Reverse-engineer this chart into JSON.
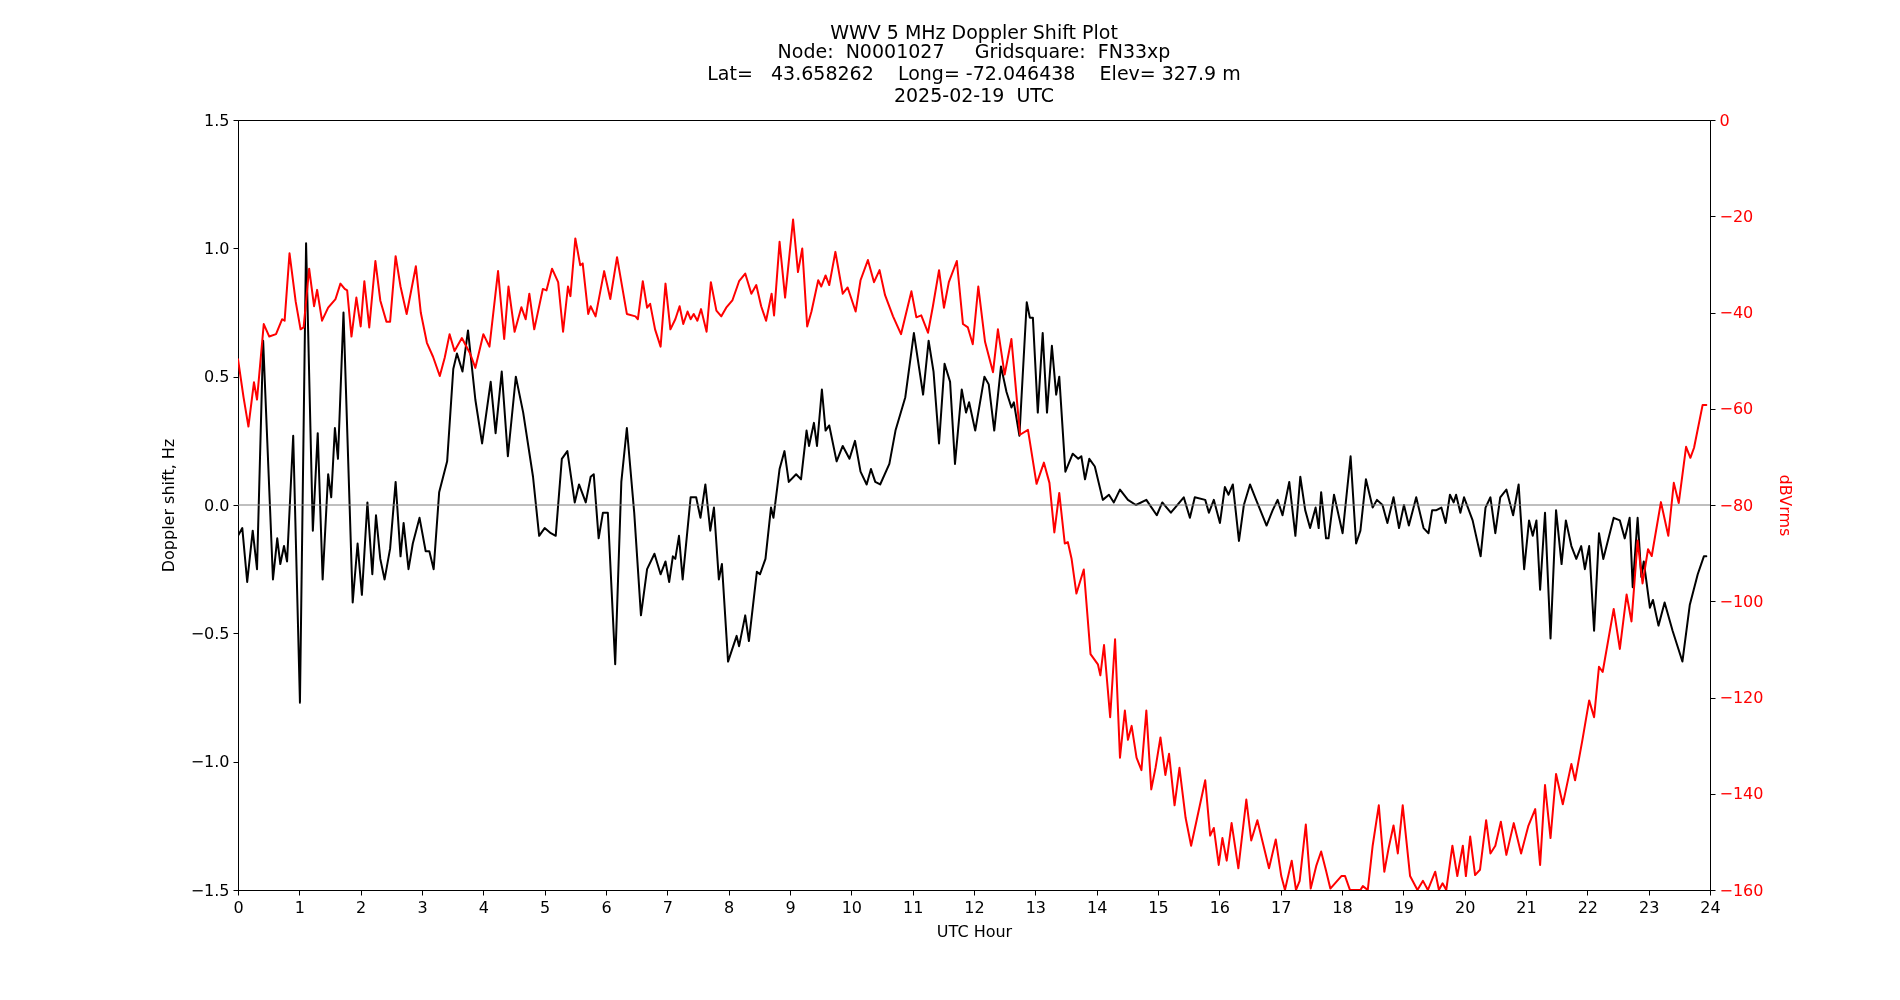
{
  "chart_data": {
    "type": "line",
    "title": "WWV 5 MHz Doppler Shift Plot",
    "subtitle": "Node:  N0001027     Gridsquare:  FN33xp\nLat=   43.658262    Long= -72.046438    Elev= 327.9 m\n2025-02-19  UTC",
    "xlabel": "UTC Hour",
    "ylabel": "Doppler shift, Hz",
    "y2label": "dBVrms",
    "xlim": [
      0,
      24
    ],
    "xticks": [
      0,
      1,
      2,
      3,
      4,
      5,
      6,
      7,
      8,
      9,
      10,
      11,
      12,
      13,
      14,
      15,
      16,
      17,
      18,
      19,
      20,
      21,
      22,
      23,
      24
    ],
    "ylim": [
      -1.5,
      1.5
    ],
    "yticks": [
      {
        "value": -1.5,
        "label": "−1.5"
      },
      {
        "value": -1,
        "label": "−1.0"
      },
      {
        "value": -0.5,
        "label": "−0.5"
      },
      {
        "value": 0,
        "label": "0.0"
      },
      0.5,
      {
        "value": 1,
        "label": "1.0"
      },
      1.5
    ],
    "y2lim": [
      -160,
      0
    ],
    "y2ticks": [
      {
        "value": -160,
        "label": "−160"
      },
      {
        "value": -140,
        "label": "−140"
      },
      {
        "value": -120,
        "label": "−120"
      },
      {
        "value": -100,
        "label": "−100"
      },
      {
        "value": -80,
        "label": "−80"
      },
      {
        "value": -60,
        "label": "−60"
      },
      {
        "value": -40,
        "label": "−40"
      },
      {
        "value": -20,
        "label": "−20"
      },
      0
    ],
    "grid": false,
    "line_style": "solid",
    "ref_lines": [
      {
        "axis": "y",
        "value": 0,
        "color": "#808080"
      }
    ],
    "series": [
      {
        "color": "#000000",
        "axis": "y",
        "x": [
          0,
          0.07,
          0.15,
          0.24,
          0.31,
          0.41,
          0.57,
          0.64,
          0.69,
          0.75,
          0.8,
          0.9,
          1.01,
          1.11,
          1.22,
          1.3,
          1.38,
          1.47,
          1.52,
          1.58,
          1.63,
          1.72,
          1.87,
          1.95,
          2.02,
          2.11,
          2.19,
          2.25,
          2.32,
          2.39,
          2.48,
          2.57,
          2.65,
          2.7,
          2.78,
          2.85,
          2.96,
          3.06,
          3.12,
          3.19,
          3.28,
          3.41,
          3.51,
          3.57,
          3.66,
          3.75,
          3.87,
          3.98,
          4.12,
          4.2,
          4.3,
          4.4,
          4.53,
          4.65,
          4.81,
          4.91,
          5,
          5.1,
          5.18,
          5.28,
          5.37,
          5.49,
          5.56,
          5.67,
          5.75,
          5.8,
          5.88,
          5.95,
          6.03,
          6.15,
          6.25,
          6.34,
          6.46,
          6.57,
          6.67,
          6.79,
          6.89,
          6.97,
          7.03,
          7.09,
          7.13,
          7.19,
          7.25,
          7.38,
          7.47,
          7.54,
          7.62,
          7.7,
          7.76,
          7.84,
          7.89,
          7.99,
          8.13,
          8.17,
          8.27,
          8.33,
          8.46,
          8.51,
          8.6,
          8.69,
          8.73,
          8.83,
          8.91,
          8.98,
          9.1,
          9.18,
          9.27,
          9.31,
          9.39,
          9.44,
          9.52,
          9.58,
          9.64,
          9.76,
          9.86,
          9.97,
          10.06,
          10.15,
          10.25,
          10.32,
          10.39,
          10.47,
          10.62,
          10.72,
          10.88,
          11.02,
          11.17,
          11.26,
          11.34,
          11.43,
          11.52,
          11.61,
          11.69,
          11.8,
          11.87,
          11.92,
          12.02,
          12.17,
          12.24,
          12.33,
          12.44,
          12.53,
          12.61,
          12.65,
          12.74,
          12.86,
          12.91,
          12.96,
          13.04,
          13.12,
          13.19,
          13.27,
          13.34,
          13.39,
          13.49,
          13.61,
          13.7,
          13.75,
          13.81,
          13.88,
          13.97,
          14.1,
          14.2,
          14.28,
          14.38,
          14.51,
          14.64,
          14.81,
          14.98,
          15.07,
          15.21,
          15.42,
          15.52,
          15.6,
          15.77,
          15.83,
          15.91,
          16.01,
          16.09,
          16.15,
          16.22,
          16.32,
          16.4,
          16.5,
          16.6,
          16.77,
          16.87,
          16.95,
          17.03,
          17.14,
          17.24,
          17.32,
          17.4,
          17.48,
          17.57,
          17.62,
          17.66,
          17.74,
          17.78,
          17.87,
          18.01,
          18.14,
          18.23,
          18.3,
          18.39,
          18.5,
          18.57,
          18.66,
          18.74,
          18.84,
          18.93,
          19.01,
          19.09,
          19.21,
          19.33,
          19.41,
          19.47,
          19.54,
          19.62,
          19.69,
          19.76,
          19.82,
          19.86,
          19.93,
          19.99,
          20.13,
          20.26,
          20.34,
          20.42,
          20.5,
          20.58,
          20.68,
          20.79,
          20.88,
          20.97,
          21.05,
          21.11,
          21.17,
          21.23,
          21.31,
          21.4,
          21.49,
          21.58,
          21.65,
          21.74,
          21.82,
          21.9,
          21.96,
          22.03,
          22.11,
          22.19,
          22.26,
          22.43,
          22.53,
          22.61,
          22.69,
          22.74,
          22.82,
          22.88,
          22.92,
          23.02,
          23.07,
          23.16,
          23.26,
          23.39,
          23.55,
          23.67,
          23.8,
          23.9,
          23.94
        ],
        "values": [
          -0.12,
          -0.09,
          -0.3,
          -0.1,
          -0.25,
          0.64,
          -0.29,
          -0.13,
          -0.23,
          -0.16,
          -0.22,
          0.27,
          -0.77,
          1.02,
          -0.1,
          0.28,
          -0.29,
          0.12,
          0.03,
          0.3,
          0.18,
          0.75,
          -0.38,
          -0.15,
          -0.35,
          0.01,
          -0.27,
          -0.04,
          -0.21,
          -0.29,
          -0.17,
          0.09,
          -0.2,
          -0.07,
          -0.25,
          -0.15,
          -0.05,
          -0.18,
          -0.18,
          -0.25,
          0.05,
          0.17,
          0.53,
          0.59,
          0.52,
          0.68,
          0.41,
          0.24,
          0.48,
          0.28,
          0.52,
          0.19,
          0.5,
          0.36,
          0.11,
          -0.12,
          -0.09,
          -0.11,
          -0.12,
          0.18,
          0.21,
          0.01,
          0.08,
          0.01,
          0.11,
          0.12,
          -0.13,
          -0.03,
          -0.03,
          -0.62,
          0.09,
          0.3,
          -0.03,
          -0.43,
          -0.25,
          -0.19,
          -0.27,
          -0.22,
          -0.3,
          -0.2,
          -0.21,
          -0.12,
          -0.29,
          0.03,
          0.03,
          -0.05,
          0.08,
          -0.1,
          -0.01,
          -0.29,
          -0.23,
          -0.61,
          -0.51,
          -0.55,
          -0.43,
          -0.53,
          -0.26,
          -0.27,
          -0.21,
          -0.01,
          -0.05,
          0.14,
          0.21,
          0.09,
          0.12,
          0.1,
          0.29,
          0.23,
          0.32,
          0.23,
          0.45,
          0.29,
          0.31,
          0.17,
          0.23,
          0.18,
          0.25,
          0.13,
          0.08,
          0.14,
          0.09,
          0.08,
          0.16,
          0.29,
          0.42,
          0.67,
          0.43,
          0.64,
          0.52,
          0.24,
          0.55,
          0.48,
          0.16,
          0.45,
          0.36,
          0.4,
          0.29,
          0.5,
          0.47,
          0.29,
          0.54,
          0.44,
          0.38,
          0.4,
          0.27,
          0.79,
          0.73,
          0.73,
          0.36,
          0.67,
          0.36,
          0.62,
          0.43,
          0.5,
          0.13,
          0.2,
          0.18,
          0.19,
          0.1,
          0.18,
          0.15,
          0.02,
          0.04,
          0.01,
          0.06,
          0.02,
          0,
          0.02,
          -0.04,
          0.01,
          -0.03,
          0.03,
          -0.05,
          0.03,
          0.02,
          -0.03,
          0.02,
          -0.07,
          0.07,
          0.04,
          0.08,
          -0.14,
          0,
          0.08,
          0.02,
          -0.08,
          -0.02,
          0.02,
          -0.04,
          0.09,
          -0.12,
          0.11,
          -0.02,
          -0.09,
          -0.01,
          -0.09,
          0.05,
          -0.13,
          -0.13,
          0.04,
          -0.11,
          0.19,
          -0.15,
          -0.1,
          0.1,
          -0.01,
          0.02,
          0,
          -0.07,
          0.03,
          -0.09,
          0,
          -0.08,
          0.03,
          -0.09,
          -0.11,
          -0.02,
          -0.02,
          -0.01,
          -0.07,
          0.04,
          0.01,
          0.04,
          -0.03,
          0.03,
          -0.06,
          -0.2,
          -0.01,
          0.03,
          -0.11,
          0.03,
          0.06,
          -0.04,
          0.08,
          -0.25,
          -0.06,
          -0.12,
          -0.06,
          -0.33,
          -0.03,
          -0.52,
          -0.02,
          -0.23,
          -0.06,
          -0.16,
          -0.21,
          -0.16,
          -0.25,
          -0.16,
          -0.49,
          -0.11,
          -0.21,
          -0.05,
          -0.06,
          -0.13,
          -0.05,
          -0.32,
          -0.05,
          -0.28,
          -0.22,
          -0.4,
          -0.37,
          -0.47,
          -0.38,
          -0.49,
          -0.61,
          -0.39,
          -0.27,
          -0.2,
          -0.2
        ]
      },
      {
        "color": "#ff0000",
        "axis": "y2",
        "x": [
          0,
          0.09,
          0.17,
          0.26,
          0.31,
          0.42,
          0.51,
          0.62,
          0.72,
          0.76,
          0.84,
          0.94,
          1.02,
          1.07,
          1.16,
          1.24,
          1.29,
          1.37,
          1.47,
          1.59,
          1.67,
          1.74,
          1.78,
          1.85,
          1.93,
          2,
          2.06,
          2.14,
          2.24,
          2.32,
          2.42,
          2.48,
          2.57,
          2.65,
          2.75,
          2.9,
          2.98,
          3.08,
          3.18,
          3.29,
          3.37,
          3.45,
          3.53,
          3.65,
          3.78,
          3.87,
          4,
          4.1,
          4.24,
          4.34,
          4.41,
          4.51,
          4.62,
          4.69,
          4.75,
          4.83,
          4.97,
          5.03,
          5.12,
          5.22,
          5.3,
          5.38,
          5.42,
          5.5,
          5.58,
          5.62,
          5.71,
          5.75,
          5.83,
          5.97,
          6.07,
          6.18,
          6.34,
          6.48,
          6.52,
          6.6,
          6.67,
          6.72,
          6.8,
          6.89,
          6.97,
          7.05,
          7.13,
          7.2,
          7.26,
          7.33,
          7.38,
          7.43,
          7.49,
          7.55,
          7.64,
          7.71,
          7.8,
          7.88,
          7.96,
          8.06,
          8.17,
          8.27,
          8.37,
          8.45,
          8.53,
          8.61,
          8.7,
          8.74,
          8.83,
          8.92,
          9.05,
          9.13,
          9.2,
          9.28,
          9.35,
          9.46,
          9.51,
          9.58,
          9.64,
          9.74,
          9.86,
          9.94,
          10.07,
          10.15,
          10.27,
          10.37,
          10.46,
          10.55,
          10.68,
          10.81,
          10.98,
          11.06,
          11.14,
          11.25,
          11.33,
          11.43,
          11.51,
          11.59,
          11.72,
          11.82,
          11.9,
          11.98,
          12.07,
          12.18,
          12.31,
          12.39,
          12.5,
          12.61,
          12.75,
          12.88,
          13.02,
          13.14,
          13.23,
          13.31,
          13.39,
          13.48,
          13.53,
          13.59,
          13.67,
          13.79,
          13.9,
          14.02,
          14.06,
          14.12,
          14.22,
          14.3,
          14.38,
          14.46,
          14.51,
          14.57,
          14.65,
          14.73,
          14.81,
          14.89,
          14.96,
          15.04,
          15.12,
          15.18,
          15.27,
          15.35,
          15.45,
          15.54,
          15.63,
          15.77,
          15.85,
          15.91,
          15.99,
          16.05,
          16.12,
          16.2,
          16.31,
          16.44,
          16.52,
          16.62,
          16.7,
          16.81,
          16.92,
          17.01,
          17.07,
          17.18,
          17.25,
          17.31,
          17.41,
          17.49,
          17.58,
          17.66,
          17.74,
          17.81,
          17.99,
          18.05,
          18.13,
          18.3,
          18.34,
          18.42,
          18.5,
          18.6,
          18.69,
          18.76,
          18.84,
          18.91,
          18.99,
          19.11,
          19.23,
          19.32,
          19.4,
          19.52,
          19.58,
          19.64,
          19.7,
          19.8,
          19.88,
          19.97,
          20.02,
          20.09,
          20.17,
          20.25,
          20.35,
          20.42,
          20.5,
          20.59,
          20.68,
          20.8,
          20.92,
          21.04,
          21.15,
          21.23,
          21.31,
          21.4,
          21.49,
          21.6,
          21.74,
          21.8,
          21.92,
          22.03,
          22.11,
          22.19,
          22.25,
          22.43,
          22.53,
          22.64,
          22.72,
          22.82,
          22.9,
          22.99,
          23.05,
          23.2,
          23.32,
          23.41,
          23.49,
          23.61,
          23.68,
          23.74,
          23.88,
          23.94
        ],
        "values": [
          -49.7,
          -57.6,
          -63.7,
          -54.5,
          -58.1,
          -42.4,
          -45,
          -44.5,
          -41.4,
          -41.7,
          -27.7,
          -37.7,
          -43.5,
          -43.1,
          -30.9,
          -38.7,
          -35.3,
          -41.7,
          -39,
          -37.2,
          -34,
          -35.1,
          -35.4,
          -45,
          -36.9,
          -42.9,
          -33.5,
          -43.1,
          -29.3,
          -37.5,
          -41.9,
          -41.9,
          -28.3,
          -34.6,
          -40.3,
          -30.4,
          -40,
          -46.3,
          -49.2,
          -53.2,
          -49.4,
          -44.5,
          -48,
          -45.3,
          -48.4,
          -51.5,
          -44.5,
          -47.1,
          -31.4,
          -45.5,
          -34.6,
          -44,
          -38.9,
          -41.4,
          -36.1,
          -43.5,
          -35.1,
          -35.4,
          -30.9,
          -33.7,
          -44,
          -34.6,
          -36.6,
          -24.6,
          -30.2,
          -29.8,
          -40.3,
          -38.7,
          -40.8,
          -31.4,
          -37.2,
          -28.5,
          -40.3,
          -40.8,
          -41.4,
          -33.5,
          -39,
          -38.2,
          -43.5,
          -47.1,
          -34,
          -43.5,
          -41.4,
          -38.7,
          -42.4,
          -39.8,
          -41.4,
          -40.3,
          -41.7,
          -39.3,
          -44,
          -33.7,
          -39.6,
          -40.8,
          -39,
          -37.5,
          -33.5,
          -31.9,
          -36.1,
          -34.3,
          -38.7,
          -41.7,
          -36.1,
          -40.6,
          -25.3,
          -36.9,
          -20.7,
          -31.6,
          -26.7,
          -42.9,
          -39.8,
          -33.3,
          -34.6,
          -32.3,
          -34.3,
          -27.4,
          -36.1,
          -34.8,
          -39.8,
          -33.3,
          -29.1,
          -33.7,
          -31.2,
          -36.4,
          -40.8,
          -44.5,
          -35.6,
          -41,
          -40.6,
          -44.2,
          -38.7,
          -31.2,
          -39,
          -33.7,
          -29.3,
          -42.4,
          -43.1,
          -46.6,
          -34.6,
          -46.1,
          -52.4,
          -43.5,
          -52.9,
          -45.5,
          -65.4,
          -64.4,
          -75.6,
          -71.2,
          -75.4,
          -85.7,
          -77.5,
          -88,
          -87.7,
          -91.1,
          -98.4,
          -93.4,
          -111,
          -113.1,
          -115.4,
          -109.1,
          -124.1,
          -107.9,
          -132.5,
          -122.7,
          -128.8,
          -125.9,
          -132.5,
          -135.1,
          -122.7,
          -139.1,
          -134.6,
          -128.3,
          -136.1,
          -131.7,
          -142.4,
          -134.6,
          -145,
          -150.8,
          -145.5,
          -137.2,
          -148.7,
          -147.1,
          -154.8,
          -149.2,
          -153.9,
          -146.1,
          -155.5,
          -141.2,
          -149.7,
          -145.5,
          -149.7,
          -155.5,
          -149.5,
          -157.1,
          -160,
          -153.9,
          -160,
          -158.1,
          -146.4,
          -159.7,
          -155,
          -152,
          -156,
          -159.7,
          -157.1,
          -157.1,
          -160,
          -160,
          -159.2,
          -160,
          -150.8,
          -142.4,
          -156.2,
          -151.3,
          -146.6,
          -152.4,
          -142.4,
          -157.1,
          -160,
          -158.1,
          -160,
          -156.2,
          -160,
          -158.6,
          -160,
          -150.8,
          -157.1,
          -150.8,
          -157.1,
          -148.9,
          -156.9,
          -155.8,
          -145.5,
          -152.4,
          -150.8,
          -145.8,
          -152.7,
          -146.1,
          -152.4,
          -146.6,
          -143.2,
          -154.8,
          -138.2,
          -149.2,
          -135.9,
          -142.2,
          -133.8,
          -137.2,
          -128.8,
          -120.6,
          -124.1,
          -113.6,
          -114.7,
          -101.6,
          -109.9,
          -98.6,
          -104.2,
          -87.4,
          -96.3,
          -89.2,
          -90.6,
          -79.4,
          -86.4,
          -75.4,
          -79.6,
          -67.9,
          -70.2,
          -68.1,
          -59.2,
          -59.2
        ]
      }
    ]
  }
}
